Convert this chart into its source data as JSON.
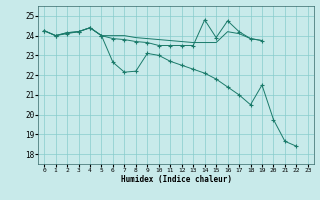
{
  "xlabel": "Humidex (Indice chaleur)",
  "bg_color": "#c8eaea",
  "grid_color": "#88cccc",
  "line_color": "#1a7a6a",
  "xlim": [
    -0.5,
    23.5
  ],
  "ylim": [
    17.5,
    25.5
  ],
  "yticks": [
    18,
    19,
    20,
    21,
    22,
    23,
    24,
    25
  ],
  "xticks": [
    0,
    1,
    2,
    3,
    4,
    5,
    6,
    7,
    8,
    9,
    10,
    11,
    12,
    13,
    14,
    15,
    16,
    17,
    18,
    19,
    20,
    21,
    22,
    23
  ],
  "series": [
    {
      "x": [
        0,
        1,
        2,
        3,
        4,
        5,
        6,
        7,
        8,
        9,
        10,
        11,
        12,
        13,
        14,
        15,
        16,
        17,
        18,
        19,
        20,
        21,
        22
      ],
      "y": [
        24.25,
        24.0,
        24.15,
        24.2,
        24.4,
        24.0,
        23.85,
        23.8,
        23.7,
        23.65,
        23.5,
        23.5,
        23.5,
        23.5,
        24.8,
        23.9,
        24.75,
        24.2,
        23.85,
        23.75,
        null,
        null,
        null
      ],
      "has_markers": true
    },
    {
      "x": [
        0,
        1,
        2,
        3,
        4,
        5,
        6,
        7,
        8,
        9,
        10,
        11,
        12,
        13,
        14,
        15,
        16,
        17,
        18,
        19
      ],
      "y": [
        24.25,
        24.0,
        24.15,
        24.2,
        24.4,
        24.0,
        24.0,
        24.0,
        23.9,
        23.85,
        23.8,
        23.75,
        23.7,
        23.65,
        23.65,
        23.65,
        24.2,
        24.1,
        23.85,
        23.75
      ],
      "has_markers": false
    },
    {
      "x": [
        0,
        1,
        2,
        3,
        4,
        5,
        6,
        7,
        8,
        9,
        10,
        11,
        12,
        13,
        14,
        15,
        16,
        17,
        18,
        19,
        20,
        21,
        22
      ],
      "y": [
        24.25,
        24.0,
        24.1,
        24.2,
        24.4,
        24.0,
        22.65,
        22.15,
        22.2,
        23.1,
        23.0,
        22.7,
        22.5,
        22.3,
        22.1,
        21.8,
        21.4,
        21.0,
        20.5,
        21.5,
        19.75,
        18.65,
        18.4
      ],
      "has_markers": true
    }
  ]
}
